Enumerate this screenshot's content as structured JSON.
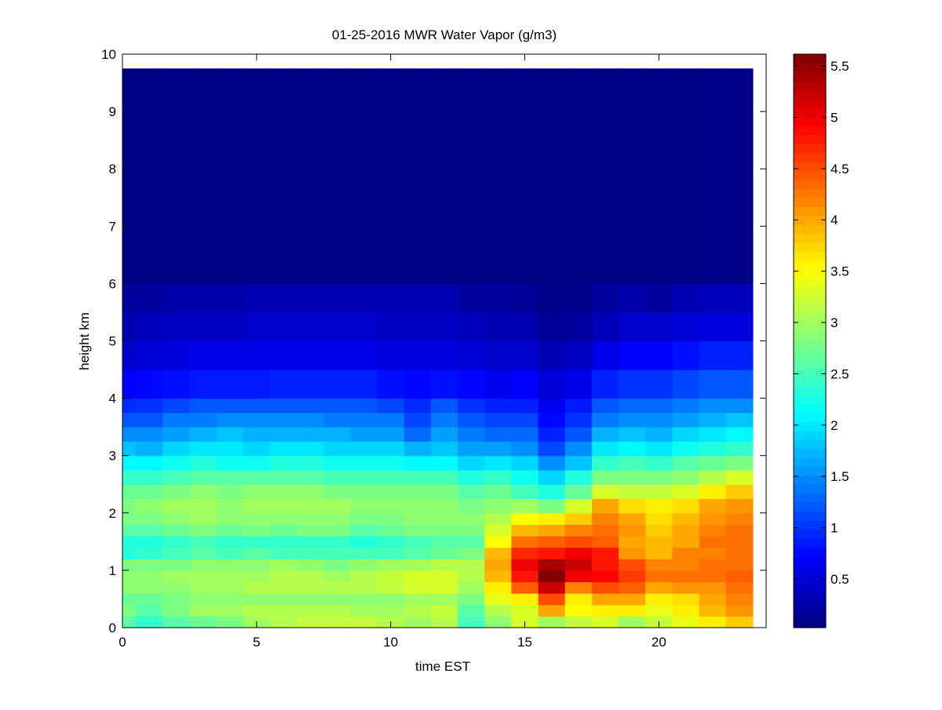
{
  "chart_data": {
    "type": "heatmap",
    "title": "01-25-2016 MWR Water Vapor (g/m3)",
    "xlabel": "time EST",
    "ylabel": "height km",
    "xlim": [
      0,
      24
    ],
    "ylim": [
      0,
      10
    ],
    "xticks": [
      "0",
      "5",
      "10",
      "15",
      "20"
    ],
    "yticks": [
      "0",
      "1",
      "2",
      "3",
      "4",
      "5",
      "6",
      "7",
      "8",
      "9",
      "10"
    ],
    "colormap": "jet",
    "clim": [
      0.026,
      5.615
    ],
    "colorbar_ticks": [
      "0.5",
      "1",
      "1.5",
      "2",
      "2.5",
      "3",
      "3.5",
      "4",
      "4.5",
      "5",
      "5.5"
    ],
    "x_centers": [
      0,
      1,
      2,
      3,
      4,
      5,
      6,
      7,
      8,
      9,
      10,
      11,
      12,
      13,
      14,
      15,
      16,
      17,
      18,
      19,
      20,
      21,
      22,
      23
    ],
    "x_end": 23.5,
    "height_edges": [
      0,
      0.2,
      0.4,
      0.6,
      0.8,
      1.0,
      1.2,
      1.4,
      1.6,
      1.8,
      2.0,
      2.25,
      2.5,
      2.75,
      3.0,
      3.25,
      3.5,
      3.75,
      4.0,
      4.5,
      5.0,
      5.5,
      6.0,
      9.75
    ],
    "values_by_time": [
      [
        2.6,
        2.8,
        2.7,
        2.9,
        2.9,
        2.8,
        2.3,
        2.3,
        2.6,
        2.8,
        2.8,
        2.7,
        2.4,
        2.1,
        1.8,
        1.5,
        1.2,
        0.95,
        0.7,
        0.45,
        0.3,
        0.2,
        0.05
      ],
      [
        2.4,
        2.6,
        2.7,
        2.9,
        2.9,
        2.8,
        2.4,
        2.3,
        2.6,
        2.8,
        2.9,
        2.7,
        2.4,
        2.1,
        1.7,
        1.5,
        1.2,
        1.0,
        0.75,
        0.5,
        0.35,
        0.2,
        0.05
      ],
      [
        2.6,
        2.8,
        2.8,
        2.9,
        3.0,
        2.8,
        2.5,
        2.4,
        2.7,
        2.9,
        3.0,
        2.8,
        2.5,
        2.2,
        1.9,
        1.6,
        1.4,
        1.1,
        0.8,
        0.55,
        0.4,
        0.25,
        0.05
      ],
      [
        2.7,
        3.0,
        2.9,
        3.0,
        3.0,
        2.9,
        2.6,
        2.5,
        2.8,
        3.0,
        3.0,
        2.9,
        2.6,
        2.3,
        2.0,
        1.7,
        1.4,
        1.2,
        0.85,
        0.6,
        0.4,
        0.25,
        0.05
      ],
      [
        2.8,
        3.0,
        2.9,
        3.0,
        3.0,
        2.9,
        2.5,
        2.4,
        2.7,
        2.9,
        2.9,
        2.8,
        2.6,
        2.2,
        2.0,
        1.8,
        1.5,
        1.2,
        0.85,
        0.6,
        0.4,
        0.25,
        0.05
      ],
      [
        3.0,
        3.1,
        2.9,
        3.1,
        3.0,
        2.9,
        2.6,
        2.4,
        2.8,
        2.9,
        3.0,
        2.9,
        2.6,
        2.2,
        1.9,
        1.7,
        1.5,
        1.2,
        0.85,
        0.6,
        0.45,
        0.3,
        0.05
      ],
      [
        3.1,
        3.1,
        2.9,
        3.1,
        3.1,
        3.0,
        2.5,
        2.4,
        2.7,
        2.9,
        3.0,
        2.9,
        2.6,
        2.3,
        2.0,
        1.7,
        1.5,
        1.2,
        0.9,
        0.6,
        0.45,
        0.3,
        0.05
      ],
      [
        3.2,
        3.1,
        2.9,
        3.1,
        3.1,
        2.9,
        2.5,
        2.4,
        2.8,
        2.9,
        3.0,
        2.9,
        2.6,
        2.3,
        2.0,
        1.7,
        1.5,
        1.2,
        0.9,
        0.6,
        0.45,
        0.3,
        0.05
      ],
      [
        3.2,
        3.1,
        2.9,
        3.1,
        3.0,
        2.8,
        2.5,
        2.4,
        2.8,
        2.9,
        3.0,
        2.8,
        2.5,
        2.2,
        1.9,
        1.7,
        1.4,
        1.2,
        0.9,
        0.6,
        0.45,
        0.3,
        0.05
      ],
      [
        3.2,
        3.0,
        2.9,
        3.1,
        3.1,
        2.9,
        2.5,
        2.3,
        2.6,
        2.8,
        2.9,
        2.8,
        2.5,
        2.2,
        1.9,
        1.6,
        1.4,
        1.2,
        0.9,
        0.6,
        0.45,
        0.3,
        0.05
      ],
      [
        3.1,
        3.0,
        2.9,
        3.2,
        3.2,
        3.0,
        2.5,
        2.4,
        2.7,
        2.8,
        2.9,
        2.8,
        2.5,
        2.2,
        1.9,
        1.6,
        1.4,
        1.1,
        0.8,
        0.55,
        0.4,
        0.3,
        0.05
      ],
      [
        3.0,
        3.1,
        3.0,
        3.3,
        3.3,
        3.0,
        2.6,
        2.5,
        2.8,
        2.9,
        2.9,
        2.8,
        2.5,
        2.1,
        1.7,
        1.3,
        1.1,
        0.95,
        0.75,
        0.55,
        0.4,
        0.3,
        0.05
      ],
      [
        3.1,
        3.2,
        3.0,
        3.3,
        3.3,
        3.1,
        2.7,
        2.6,
        2.8,
        2.9,
        2.9,
        2.8,
        2.5,
        2.1,
        1.8,
        1.6,
        1.4,
        1.2,
        0.8,
        0.55,
        0.4,
        0.3,
        0.05
      ],
      [
        2.5,
        2.6,
        2.8,
        3.0,
        3.1,
        3.1,
        2.8,
        2.6,
        2.8,
        2.9,
        2.8,
        2.6,
        2.3,
        1.9,
        1.6,
        1.4,
        1.2,
        1.0,
        0.75,
        0.5,
        0.35,
        0.2,
        0.05
      ],
      [
        2.9,
        3.1,
        3.4,
        3.6,
        3.9,
        4.0,
        3.9,
        3.5,
        3.3,
        3.1,
        2.9,
        2.7,
        2.4,
        2.0,
        1.6,
        1.3,
        1.1,
        0.9,
        0.65,
        0.45,
        0.3,
        0.2,
        0.05
      ],
      [
        3.3,
        3.3,
        3.6,
        4.4,
        4.8,
        5.0,
        4.7,
        4.3,
        3.9,
        3.5,
        3.0,
        2.5,
        2.2,
        1.9,
        1.5,
        1.3,
        1.1,
        0.9,
        0.7,
        0.45,
        0.3,
        0.15,
        0.05
      ],
      [
        3.0,
        4.0,
        4.5,
        5.2,
        5.6,
        5.4,
        4.8,
        4.4,
        4.0,
        3.6,
        2.8,
        2.3,
        1.9,
        1.5,
        1.1,
        0.9,
        0.75,
        0.65,
        0.5,
        0.3,
        0.15,
        0.08,
        0.04
      ],
      [
        3.2,
        3.5,
        3.6,
        4.2,
        5.0,
        5.2,
        5.0,
        4.5,
        4.2,
        3.8,
        3.3,
        2.7,
        2.3,
        1.8,
        1.5,
        1.2,
        1.0,
        0.85,
        0.6,
        0.4,
        0.2,
        0.1,
        0.04
      ],
      [
        3.3,
        3.6,
        4.0,
        4.5,
        4.9,
        4.8,
        4.8,
        4.4,
        4.3,
        4.2,
        4.0,
        3.3,
        2.8,
        2.4,
        2.0,
        1.7,
        1.4,
        1.2,
        0.9,
        0.6,
        0.35,
        0.2,
        0.05
      ],
      [
        3.0,
        3.6,
        4.0,
        4.4,
        4.6,
        4.5,
        4.1,
        4.0,
        4.1,
        4.0,
        3.7,
        3.2,
        2.8,
        2.5,
        2.1,
        1.8,
        1.5,
        1.3,
        1.0,
        0.7,
        0.45,
        0.25,
        0.05
      ],
      [
        3.2,
        3.4,
        3.6,
        4.0,
        4.3,
        4.2,
        3.9,
        3.9,
        3.8,
        3.7,
        3.6,
        3.2,
        2.8,
        2.4,
        2.0,
        1.7,
        1.5,
        1.3,
        1.0,
        0.7,
        0.45,
        0.2,
        0.05
      ],
      [
        3.4,
        3.6,
        3.7,
        4.1,
        4.3,
        4.2,
        4.2,
        4.0,
        4.0,
        3.9,
        3.7,
        3.3,
        2.9,
        2.6,
        2.2,
        1.9,
        1.6,
        1.4,
        1.1,
        0.8,
        0.5,
        0.3,
        0.05
      ],
      [
        3.6,
        3.9,
        4.0,
        4.1,
        4.3,
        4.3,
        4.2,
        4.3,
        4.2,
        4.1,
        4.0,
        3.6,
        3.1,
        2.7,
        2.3,
        2.0,
        1.7,
        1.5,
        1.2,
        0.9,
        0.55,
        0.35,
        0.06
      ],
      [
        3.8,
        4.1,
        4.2,
        4.3,
        4.4,
        4.3,
        4.3,
        4.3,
        4.3,
        4.2,
        4.1,
        3.8,
        3.3,
        2.8,
        2.4,
        2.1,
        1.8,
        1.5,
        1.2,
        0.9,
        0.55,
        0.35,
        0.06
      ]
    ]
  }
}
